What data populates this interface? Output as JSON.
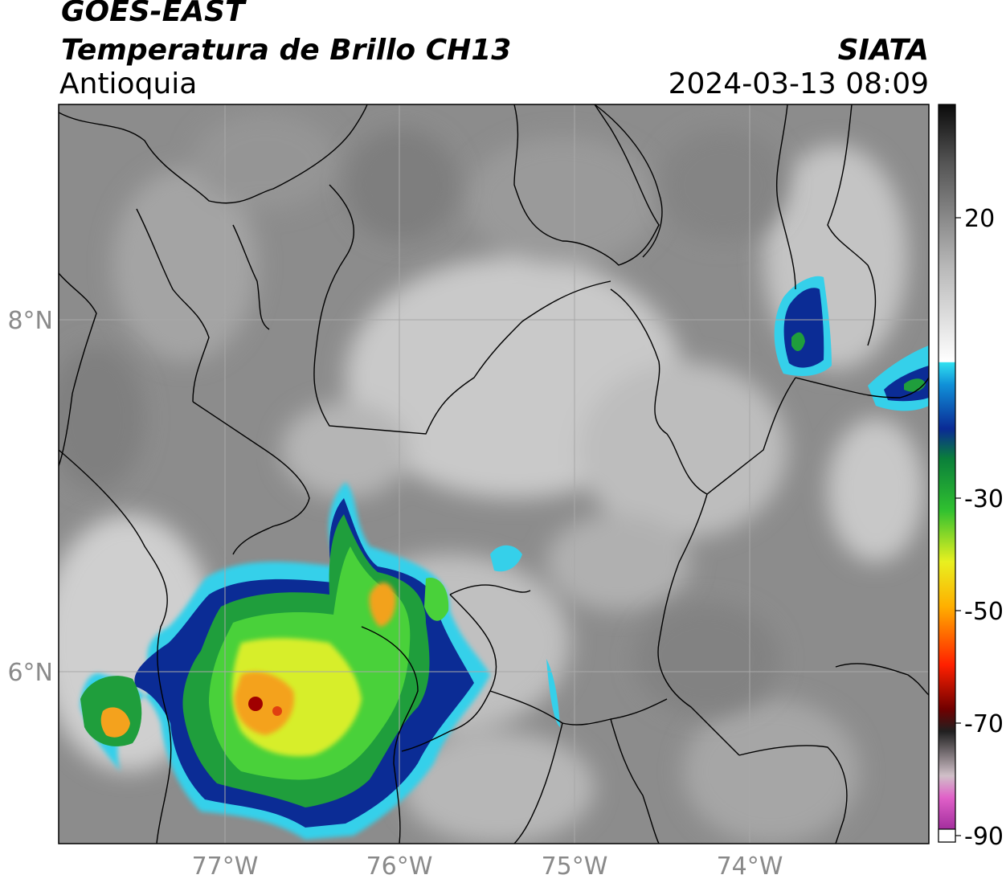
{
  "header": {
    "satellite": "GOES-EAST",
    "product": "Temperatura de Brillo CH13",
    "region": "Antioquia",
    "organization": "SIATA",
    "timestamp": "2024-03-13 08:09"
  },
  "map": {
    "lon_labels": [
      "77°W",
      "76°W",
      "75°W",
      "74°W"
    ],
    "lat_labels": [
      "8°N",
      "6°N"
    ]
  },
  "colorbar": {
    "tick_labels": [
      "20",
      "-30",
      "-50",
      "-70",
      "-90"
    ]
  },
  "colors": {
    "background_gray": "#8c8c8c",
    "cold_cyan": "#2fd0ea",
    "cold_blue": "#0a2c95",
    "green": "#2fb82f",
    "yellow": "#e8f028",
    "orange": "#f6a020",
    "red": "#b10000"
  }
}
